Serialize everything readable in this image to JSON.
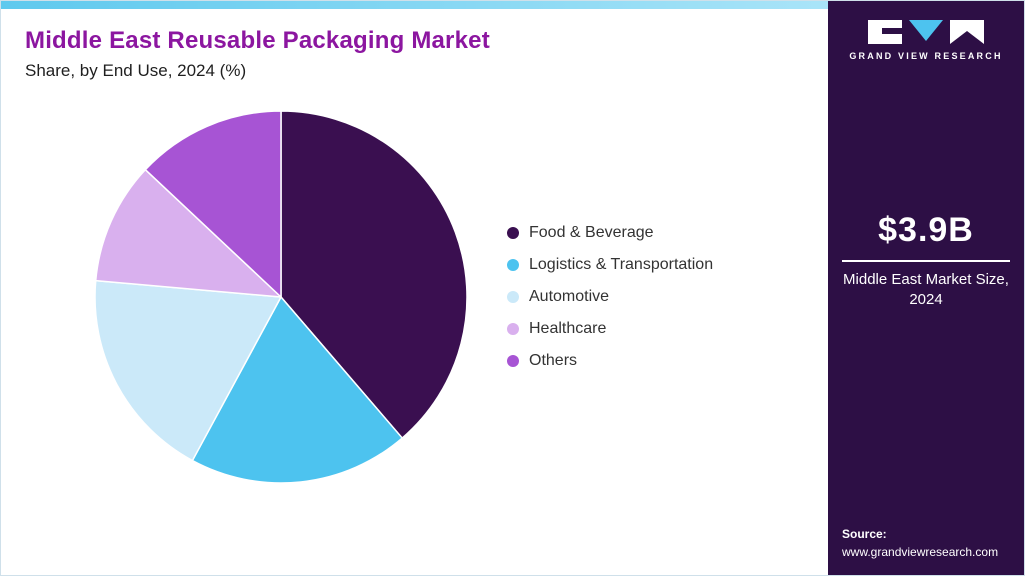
{
  "header": {
    "title": "Middle East Reusable Packaging Market",
    "subtitle": "Share, by End Use, 2024 (%)"
  },
  "chart_data": {
    "type": "pie",
    "title": "Middle East Reusable Packaging Market Share, by End Use, 2024 (%)",
    "labels": [
      "Food & Beverage",
      "Logistics & Transportation",
      "Automotive",
      "Healthcare",
      "Others"
    ],
    "values": [
      38.7,
      19.2,
      18.5,
      10.6,
      13.0
    ],
    "colors": [
      "#3a0f50",
      "#4dc3ef",
      "#cbe9f9",
      "#d9b0ee",
      "#a754d4"
    ],
    "start_angle_deg": 0,
    "direction": "clockwise",
    "legend_position": "right",
    "slice_border_color": "#ffffff"
  },
  "sidebar": {
    "logo_text": "GRAND VIEW RESEARCH",
    "market_size_value": "$3.9B",
    "market_size_label": "Middle East Market Size, 2024",
    "source_label": "Source:",
    "source_url": "www.grandviewresearch.com",
    "bg_color": "#2d0f45",
    "accent_color": "#4dc3ef"
  }
}
